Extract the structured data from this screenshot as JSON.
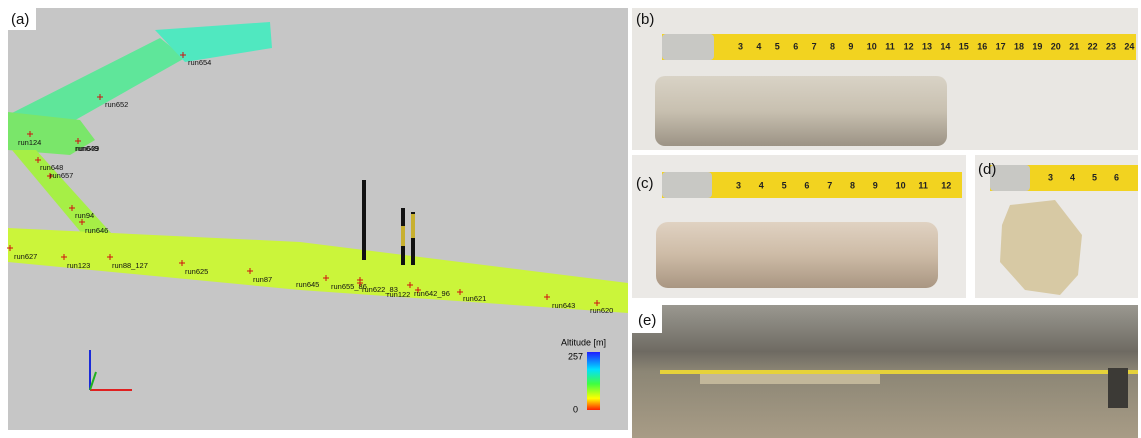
{
  "panels": [
    "(a)",
    "(b)",
    "(c)",
    "(d)",
    "(e)"
  ],
  "runs": [
    "run654",
    "run652",
    "run124",
    "run649",
    "run639",
    "run648",
    "run657",
    "run94",
    "run646",
    "run627",
    "run123",
    "run88_127",
    "run625",
    "run87",
    "run645",
    "run655_86",
    "run622_83",
    "run122",
    "run642_96",
    "run621",
    "run643",
    "run620"
  ],
  "legend": {
    "title": "Altitude [m]",
    "max": 257,
    "min": 0
  },
  "tape_b": [
    3,
    4,
    5,
    6,
    7,
    8,
    9,
    10,
    11,
    12,
    13,
    14,
    15,
    16,
    17,
    18,
    19,
    20,
    21,
    22,
    23,
    24
  ],
  "tape_c": [
    3,
    4,
    5,
    6,
    7,
    8,
    9,
    10,
    11,
    12
  ],
  "tape_d": [
    3,
    4,
    5,
    6
  ]
}
